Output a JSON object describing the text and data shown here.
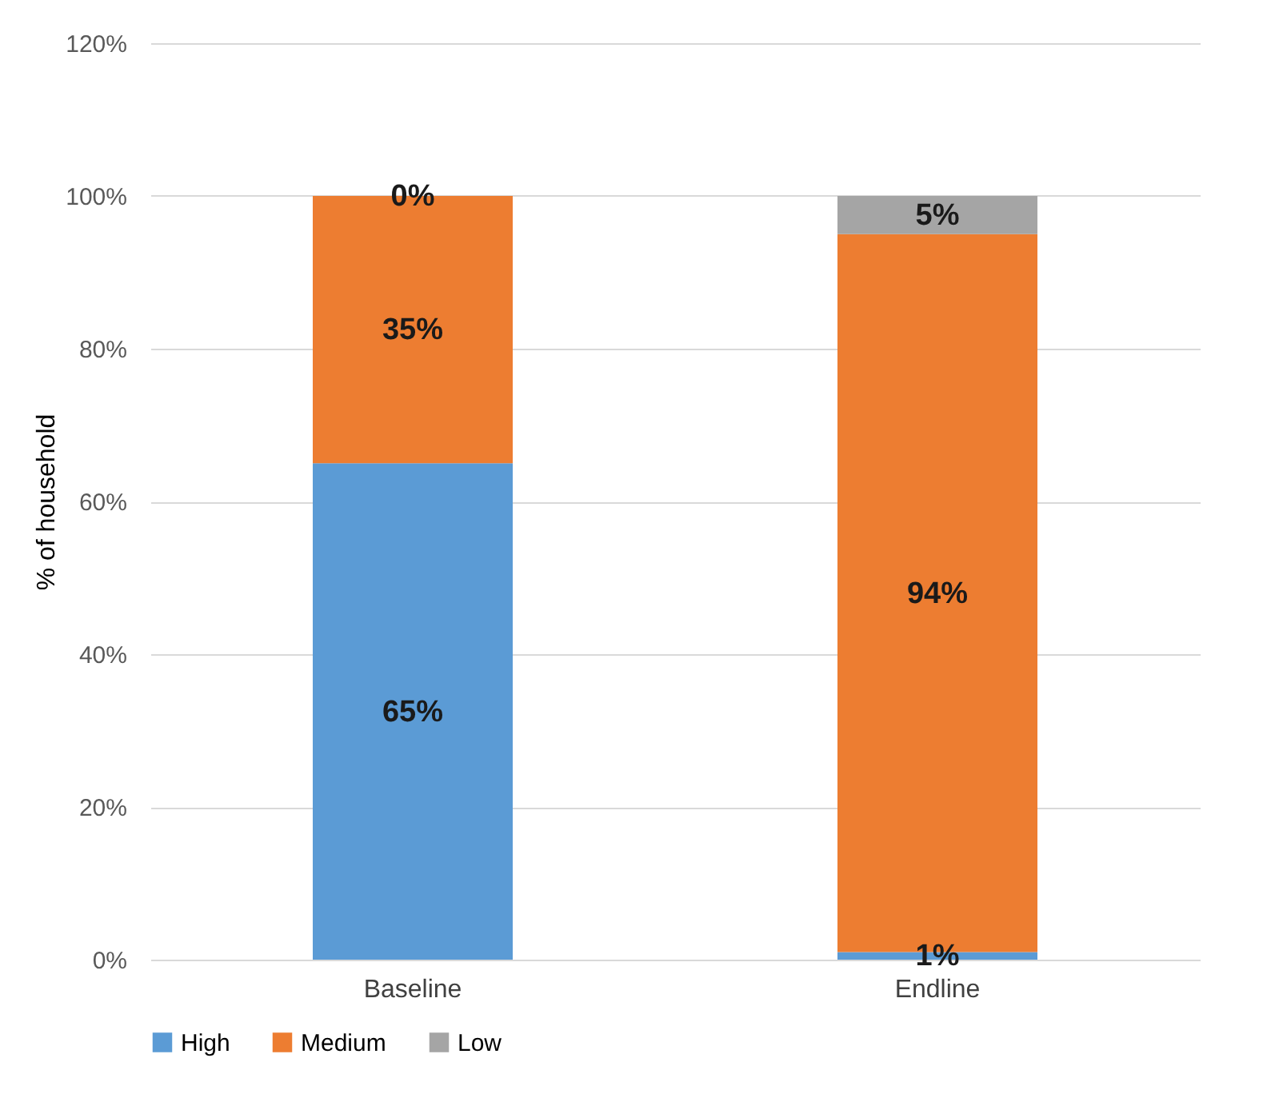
{
  "chart_data": {
    "type": "bar",
    "stacked": true,
    "ylabel": "% of household",
    "categories": [
      "Baseline",
      "Endline"
    ],
    "series": [
      {
        "name": "High",
        "color": "#5b9bd5",
        "values": [
          65,
          1
        ],
        "value_labels": [
          "65%",
          "1%"
        ]
      },
      {
        "name": "Medium",
        "color": "#ed7d31",
        "values": [
          35,
          94
        ],
        "value_labels": [
          "35%",
          "94%"
        ]
      },
      {
        "name": "Low",
        "color": "#a5a5a5",
        "values": [
          0,
          5
        ],
        "value_labels": [
          "0%",
          "5%"
        ]
      }
    ],
    "ylim": [
      0,
      120
    ],
    "yticks": [
      {
        "value": 0,
        "label": "0%"
      },
      {
        "value": 20,
        "label": "20%"
      },
      {
        "value": 40,
        "label": "40%"
      },
      {
        "value": 60,
        "label": "60%"
      },
      {
        "value": 80,
        "label": "80%"
      },
      {
        "value": 100,
        "label": "100%"
      },
      {
        "value": 120,
        "label": "120%"
      }
    ],
    "grid": "y",
    "legend": "bottom"
  }
}
